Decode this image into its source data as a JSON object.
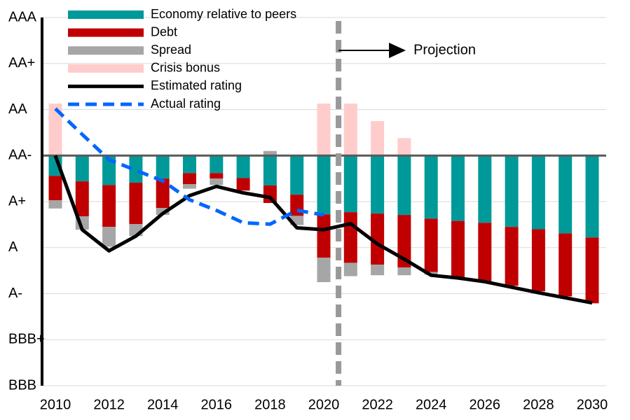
{
  "chart_data": {
    "type": "bar",
    "x": [
      2010,
      2011,
      2012,
      2013,
      2014,
      2015,
      2016,
      2017,
      2018,
      2019,
      2020,
      2021,
      2022,
      2023,
      2024,
      2025,
      2026,
      2027,
      2028,
      2029,
      2030
    ],
    "xlim": [
      2010,
      2030
    ],
    "xticks": [
      2010,
      2012,
      2014,
      2016,
      2018,
      2020,
      2022,
      2024,
      2026,
      2028,
      2030
    ],
    "ylim": [
      -5,
      3
    ],
    "yticks": [
      {
        "value": 3,
        "label": "AAA"
      },
      {
        "value": 2,
        "label": "AA+"
      },
      {
        "value": 1,
        "label": "AA"
      },
      {
        "value": 0,
        "label": "AA-"
      },
      {
        "value": -1,
        "label": "A+"
      },
      {
        "value": -2,
        "label": "A"
      },
      {
        "value": -3,
        "label": "A-"
      },
      {
        "value": -4,
        "label": "BBB+"
      },
      {
        "value": -5,
        "label": "BBB"
      }
    ],
    "grid": true,
    "series": [
      {
        "name": "Economy relative to peers",
        "type": "bar",
        "color": "#009999",
        "values": [
          -0.44,
          -0.56,
          -0.64,
          -0.59,
          -0.5,
          -0.38,
          -0.38,
          -0.49,
          -0.65,
          -0.85,
          -1.28,
          -1.23,
          -1.26,
          -1.29,
          -1.37,
          -1.42,
          -1.46,
          -1.55,
          -1.6,
          -1.69,
          -1.78
        ]
      },
      {
        "name": "Debt",
        "type": "bar",
        "color": "#c00000",
        "values": [
          -0.53,
          -0.76,
          -0.91,
          -0.9,
          -0.64,
          -0.24,
          -0.12,
          -0.27,
          -0.38,
          -0.46,
          -0.94,
          -1.1,
          -1.11,
          -1.14,
          -1.16,
          -1.22,
          -1.28,
          -1.28,
          -1.35,
          -1.37,
          -1.43
        ]
      },
      {
        "name": "Spread",
        "type": "bar",
        "color": "#a6a6a6",
        "values": [
          -0.18,
          -0.29,
          -0.43,
          -0.26,
          -0.15,
          -0.1,
          -0.14,
          0,
          0.1,
          -0.2,
          -0.53,
          -0.29,
          -0.23,
          -0.17,
          -0.06,
          0,
          0,
          0,
          0,
          0,
          0
        ]
      },
      {
        "name": "Crisis bonus",
        "type": "bar",
        "color": "#ffcccc",
        "values": [
          1.13,
          0,
          0,
          0,
          0,
          0,
          0,
          0,
          0,
          0,
          1.13,
          1.13,
          0.75,
          0.38,
          0,
          0,
          0,
          0,
          0,
          0,
          0
        ]
      },
      {
        "name": "Estimated rating",
        "type": "line",
        "color": "#000000",
        "dashed": false,
        "values": [
          0,
          -1.61,
          -2.07,
          -1.75,
          -1.26,
          -0.87,
          -0.67,
          -0.81,
          -0.91,
          -1.57,
          -1.61,
          -1.48,
          -1.92,
          -2.25,
          -2.6,
          -2.66,
          -2.74,
          -2.86,
          -2.98,
          -3.09,
          -3.2
        ]
      },
      {
        "name": "Actual rating",
        "type": "line",
        "color": "#0066ff",
        "dashed": true,
        "values": [
          1.02,
          0.46,
          -0.09,
          -0.32,
          -0.55,
          -0.96,
          -1.19,
          -1.46,
          -1.49,
          -1.19,
          -1.29,
          null,
          null,
          null,
          null,
          null,
          null,
          null,
          null,
          null,
          null
        ]
      }
    ],
    "projection": {
      "x": 2020.55,
      "label": "Projection"
    }
  }
}
